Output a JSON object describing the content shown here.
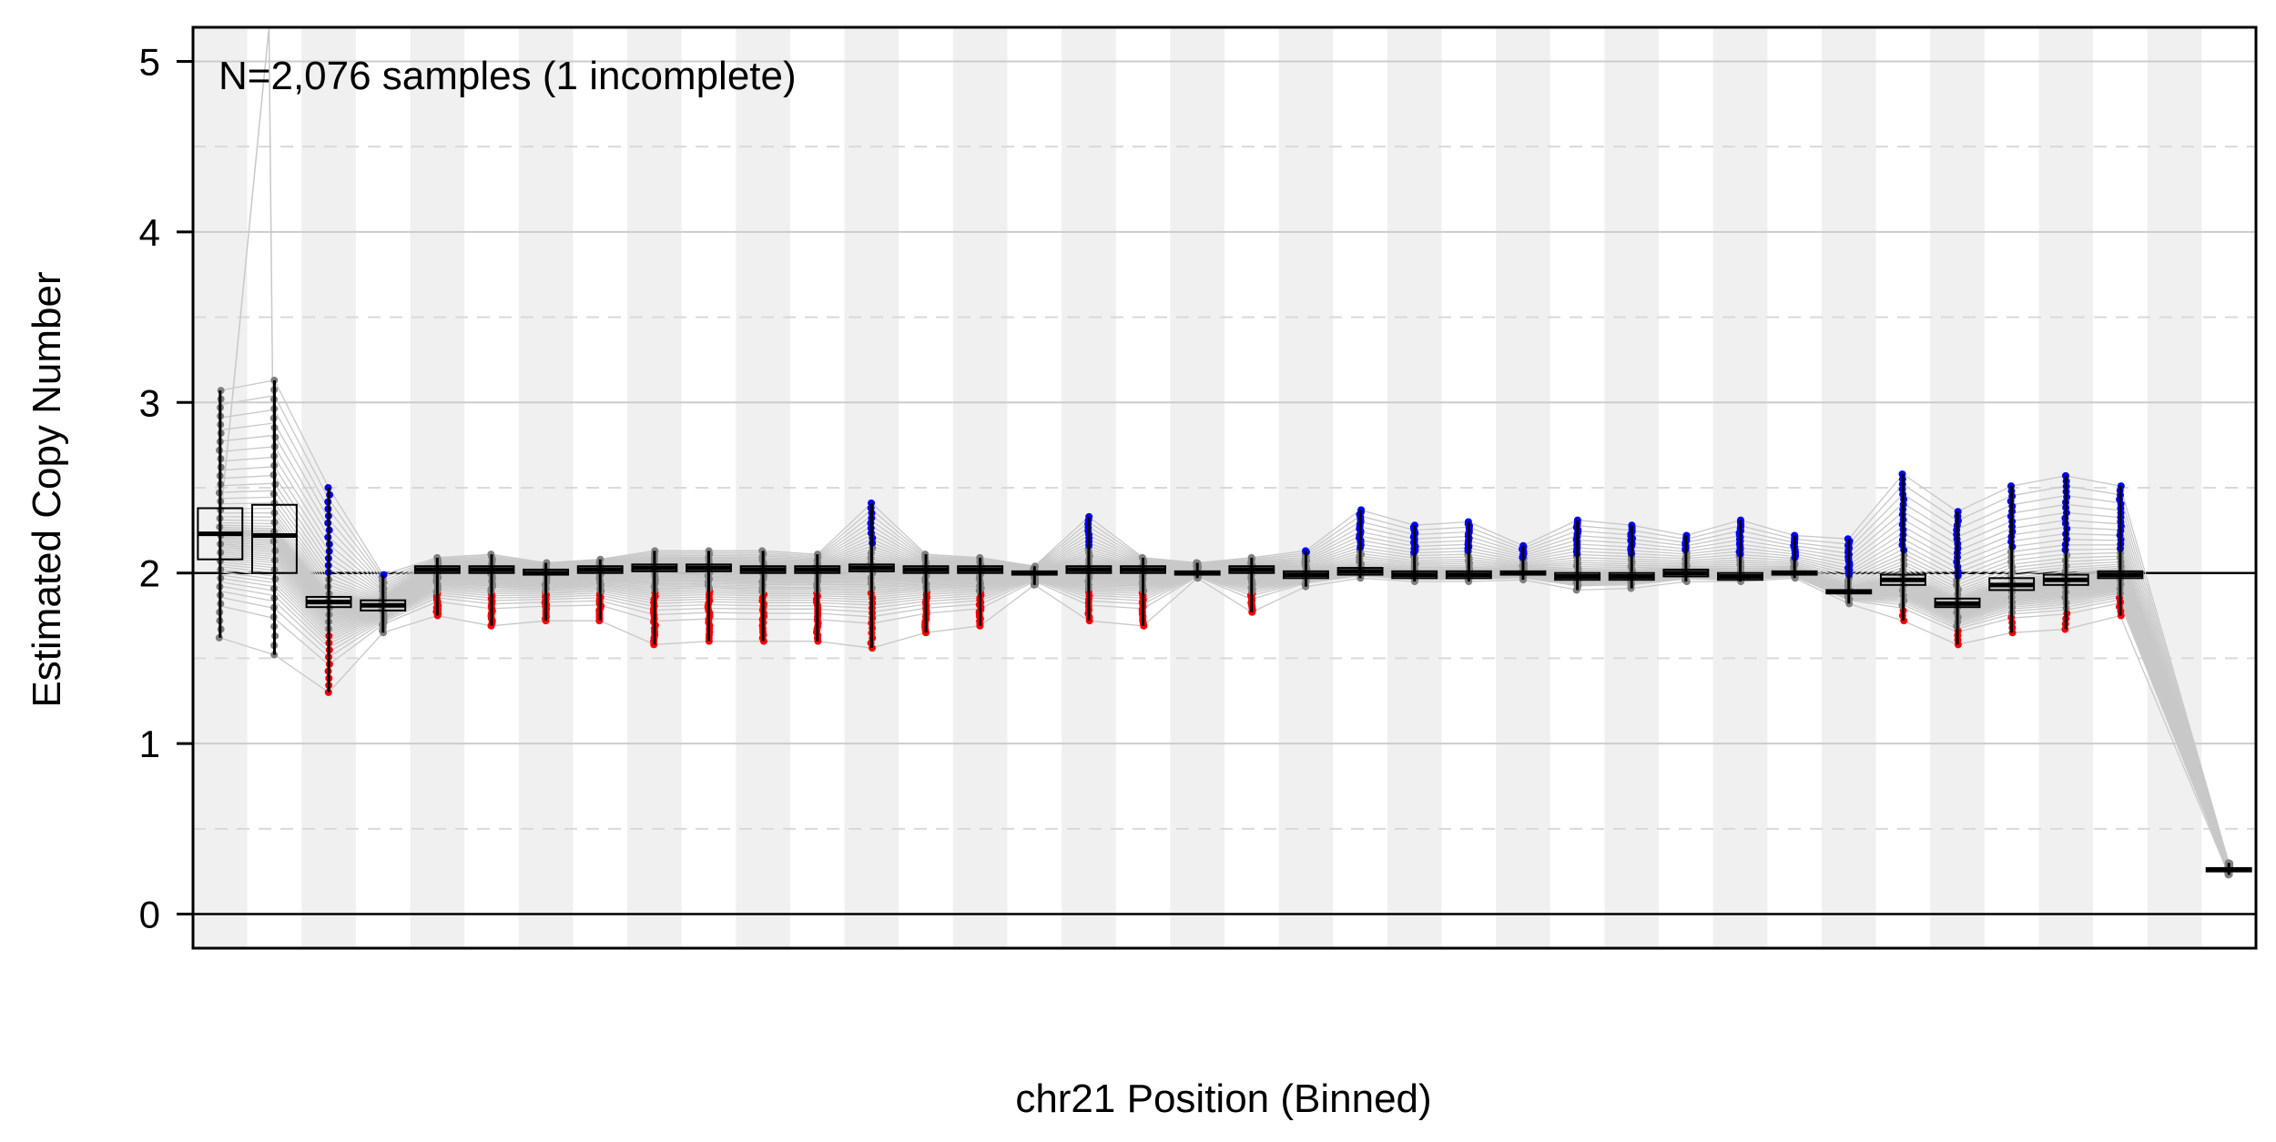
{
  "chart_data": {
    "type": "box",
    "annotation": "N=2,076 samples (1 incomplete)",
    "xlabel": "chr21 Position (Binned)",
    "ylabel": "Estimated Copy Number",
    "ylim": [
      -0.2,
      5.2
    ],
    "yticks": [
      0,
      1,
      2,
      3,
      4,
      5
    ],
    "reference_line": 2,
    "grid": "horizontal solid at integers, dashed at half-integers",
    "band_shading": "alternating light-grey vertical bands per bin",
    "n_bins": 38,
    "colors": {
      "box": "#000000",
      "median": "#000000",
      "point": "#808080",
      "gain_outlier": "#0000ff",
      "loss_outlier": "#ff0000",
      "sample_line": "#c8c8c8",
      "band": "#f0f0f0"
    },
    "bins": [
      {
        "bin": 1,
        "median": 2.23,
        "q1": 2.08,
        "q3": 2.38,
        "low": 1.62,
        "high": 3.07
      },
      {
        "bin": 2,
        "median": 2.22,
        "q1": 2.0,
        "q3": 2.4,
        "low": 1.52,
        "high": 3.13
      },
      {
        "bin": 3,
        "median": 1.83,
        "q1": 1.8,
        "q3": 1.86,
        "low": 1.3,
        "high": 2.5
      },
      {
        "bin": 4,
        "median": 1.81,
        "q1": 1.78,
        "q3": 1.84,
        "low": 1.65,
        "high": 1.99
      },
      {
        "bin": 5,
        "median": 2.02,
        "q1": 2.0,
        "q3": 2.04,
        "low": 1.75,
        "high": 2.09
      },
      {
        "bin": 6,
        "median": 2.02,
        "q1": 2.0,
        "q3": 2.04,
        "low": 1.69,
        "high": 2.11
      },
      {
        "bin": 7,
        "median": 2.0,
        "q1": 1.99,
        "q3": 2.02,
        "low": 1.72,
        "high": 2.06
      },
      {
        "bin": 8,
        "median": 2.02,
        "q1": 2.0,
        "q3": 2.04,
        "low": 1.72,
        "high": 2.08
      },
      {
        "bin": 9,
        "median": 2.03,
        "q1": 2.01,
        "q3": 2.05,
        "low": 1.58,
        "high": 2.13
      },
      {
        "bin": 10,
        "median": 2.03,
        "q1": 2.01,
        "q3": 2.05,
        "low": 1.6,
        "high": 2.13
      },
      {
        "bin": 11,
        "median": 2.02,
        "q1": 2.0,
        "q3": 2.04,
        "low": 1.6,
        "high": 2.13
      },
      {
        "bin": 12,
        "median": 2.02,
        "q1": 2.0,
        "q3": 2.04,
        "low": 1.6,
        "high": 2.11
      },
      {
        "bin": 13,
        "median": 2.03,
        "q1": 2.01,
        "q3": 2.05,
        "low": 1.56,
        "high": 2.41
      },
      {
        "bin": 14,
        "median": 2.02,
        "q1": 2.0,
        "q3": 2.04,
        "low": 1.65,
        "high": 2.11
      },
      {
        "bin": 15,
        "median": 2.02,
        "q1": 2.0,
        "q3": 2.04,
        "low": 1.69,
        "high": 2.09
      },
      {
        "bin": 16,
        "median": 2.0,
        "q1": 1.99,
        "q3": 2.01,
        "low": 1.93,
        "high": 2.04
      },
      {
        "bin": 17,
        "median": 2.02,
        "q1": 2.0,
        "q3": 2.04,
        "low": 1.72,
        "high": 2.33
      },
      {
        "bin": 18,
        "median": 2.02,
        "q1": 2.0,
        "q3": 2.04,
        "low": 1.69,
        "high": 2.09
      },
      {
        "bin": 19,
        "median": 2.0,
        "q1": 1.99,
        "q3": 2.01,
        "low": 1.97,
        "high": 2.06
      },
      {
        "bin": 20,
        "median": 2.02,
        "q1": 2.0,
        "q3": 2.04,
        "low": 1.77,
        "high": 2.09
      },
      {
        "bin": 21,
        "median": 1.99,
        "q1": 1.97,
        "q3": 2.01,
        "low": 1.92,
        "high": 2.13
      },
      {
        "bin": 22,
        "median": 2.01,
        "q1": 1.99,
        "q3": 2.03,
        "low": 1.97,
        "high": 2.37
      },
      {
        "bin": 23,
        "median": 1.99,
        "q1": 1.97,
        "q3": 2.01,
        "low": 1.95,
        "high": 2.28
      },
      {
        "bin": 24,
        "median": 1.99,
        "q1": 1.97,
        "q3": 2.01,
        "low": 1.95,
        "high": 2.3
      },
      {
        "bin": 25,
        "median": 2.0,
        "q1": 1.99,
        "q3": 2.01,
        "low": 1.96,
        "high": 2.16
      },
      {
        "bin": 26,
        "median": 1.98,
        "q1": 1.96,
        "q3": 2.0,
        "low": 1.9,
        "high": 2.31
      },
      {
        "bin": 27,
        "median": 1.98,
        "q1": 1.96,
        "q3": 2.0,
        "low": 1.91,
        "high": 2.28
      },
      {
        "bin": 28,
        "median": 2.0,
        "q1": 1.98,
        "q3": 2.02,
        "low": 1.95,
        "high": 2.22
      },
      {
        "bin": 29,
        "median": 1.98,
        "q1": 1.96,
        "q3": 2.0,
        "low": 1.95,
        "high": 2.31
      },
      {
        "bin": 30,
        "median": 2.0,
        "q1": 1.99,
        "q3": 2.01,
        "low": 1.97,
        "high": 2.22
      },
      {
        "bin": 31,
        "median": 1.89,
        "q1": 1.88,
        "q3": 1.9,
        "low": 1.82,
        "high": 2.2
      },
      {
        "bin": 32,
        "median": 1.96,
        "q1": 1.93,
        "q3": 1.99,
        "low": 1.72,
        "high": 2.58
      },
      {
        "bin": 33,
        "median": 1.82,
        "q1": 1.8,
        "q3": 1.85,
        "low": 1.58,
        "high": 2.36
      },
      {
        "bin": 34,
        "median": 1.93,
        "q1": 1.9,
        "q3": 1.97,
        "low": 1.65,
        "high": 2.51
      },
      {
        "bin": 35,
        "median": 1.96,
        "q1": 1.93,
        "q3": 1.99,
        "low": 1.67,
        "high": 2.57
      },
      {
        "bin": 36,
        "median": 1.99,
        "q1": 1.97,
        "q3": 2.01,
        "low": 1.75,
        "high": 2.51
      },
      {
        "bin": 37,
        "median": null,
        "q1": null,
        "q3": null,
        "low": null,
        "high": null
      },
      {
        "bin": 38,
        "median": 0.26,
        "q1": 0.25,
        "q3": 0.27,
        "low": 0.23,
        "high": 0.3
      }
    ]
  }
}
